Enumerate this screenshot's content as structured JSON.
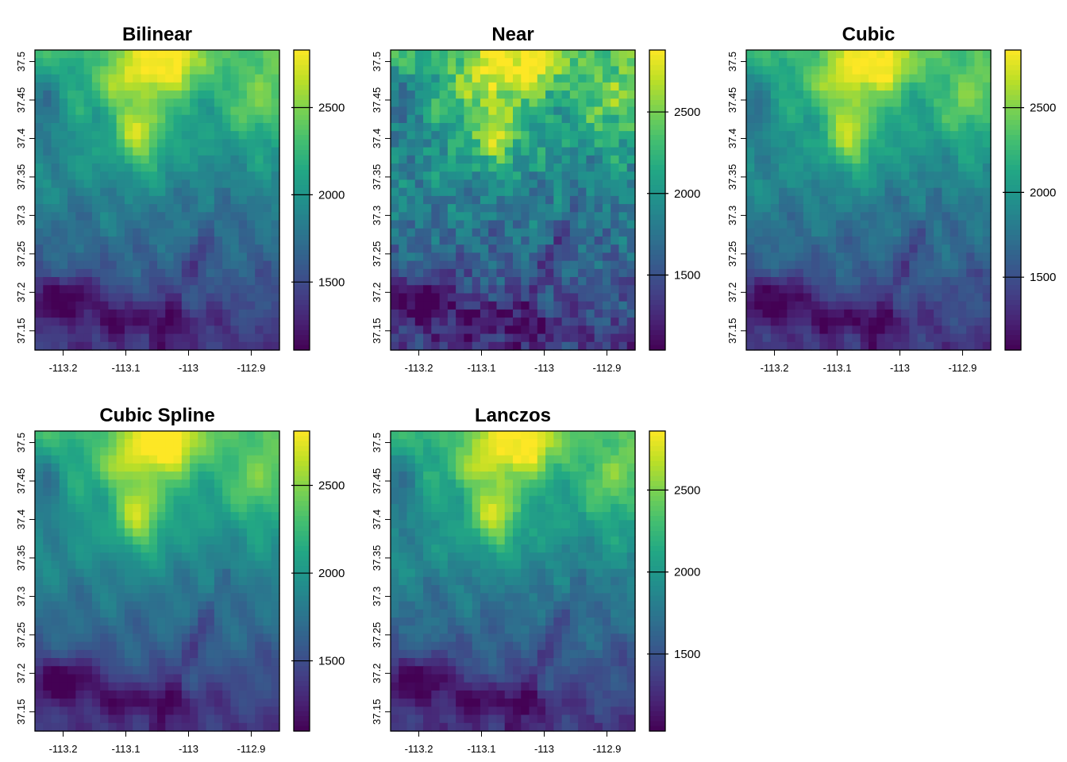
{
  "chart_data": [
    {
      "type": "heatmap",
      "title": "Bilinear",
      "x_ticks": [
        -113.2,
        -113.1,
        -113,
        -112.9
      ],
      "x_tick_labels": [
        "-113.2",
        "-113.1",
        "-113",
        "-112.9"
      ],
      "y_ticks": [
        37.15,
        37.2,
        37.25,
        37.3,
        37.35,
        37.4,
        37.45,
        37.5
      ],
      "y_tick_labels": [
        "37.15",
        "37.2",
        "37.25",
        "37.3",
        "37.35",
        "37.4",
        "37.45",
        "37.5"
      ],
      "xlim": [
        -113.245,
        -112.855
      ],
      "ylim": [
        37.125,
        37.515
      ],
      "colorbar": {
        "ticks": [
          1500,
          2000,
          2500
        ],
        "tick_labels": [
          "1500",
          "2000",
          "2500"
        ],
        "range": [
          1110,
          2830
        ]
      },
      "colormap": "viridis",
      "grid_resolution": "coarse"
    },
    {
      "type": "heatmap",
      "title": "Near",
      "x_ticks": [
        -113.2,
        -113.1,
        -113,
        -112.9
      ],
      "x_tick_labels": [
        "-113.2",
        "-113.1",
        "-113",
        "-112.9"
      ],
      "y_ticks": [
        37.15,
        37.2,
        37.25,
        37.3,
        37.35,
        37.4,
        37.45,
        37.5
      ],
      "y_tick_labels": [
        "37.15",
        "37.2",
        "37.25",
        "37.3",
        "37.35",
        "37.4",
        "37.45",
        "37.5"
      ],
      "xlim": [
        -113.245,
        -112.855
      ],
      "ylim": [
        37.125,
        37.515
      ],
      "colorbar": {
        "ticks": [
          1500,
          2000,
          2500
        ],
        "tick_labels": [
          "1500",
          "2000",
          "2500"
        ],
        "range": [
          1040,
          2880
        ]
      },
      "colormap": "viridis",
      "grid_resolution": "blocky"
    },
    {
      "type": "heatmap",
      "title": "Cubic",
      "x_ticks": [
        -113.2,
        -113.1,
        -113,
        -112.9
      ],
      "x_tick_labels": [
        "-113.2",
        "-113.1",
        "-113",
        "-112.9"
      ],
      "y_ticks": [
        37.15,
        37.2,
        37.25,
        37.3,
        37.35,
        37.4,
        37.45,
        37.5
      ],
      "y_tick_labels": [
        "37.15",
        "37.2",
        "37.25",
        "37.3",
        "37.35",
        "37.4",
        "37.45",
        "37.5"
      ],
      "xlim": [
        -113.245,
        -112.855
      ],
      "ylim": [
        37.125,
        37.515
      ],
      "colorbar": {
        "ticks": [
          1500,
          2000,
          2500
        ],
        "tick_labels": [
          "1500",
          "2000",
          "2500"
        ],
        "range": [
          1070,
          2840
        ]
      },
      "colormap": "viridis",
      "grid_resolution": "coarse"
    },
    {
      "type": "heatmap",
      "title": "Cubic Spline",
      "x_ticks": [
        -113.2,
        -113.1,
        -113,
        -112.9
      ],
      "x_tick_labels": [
        "-113.2",
        "-113.1",
        "-113",
        "-112.9"
      ],
      "y_ticks": [
        37.15,
        37.2,
        37.25,
        37.3,
        37.35,
        37.4,
        37.45,
        37.5
      ],
      "y_tick_labels": [
        "37.15",
        "37.2",
        "37.25",
        "37.3",
        "37.35",
        "37.4",
        "37.45",
        "37.5"
      ],
      "xlim": [
        -113.245,
        -112.855
      ],
      "ylim": [
        37.125,
        37.515
      ],
      "colorbar": {
        "ticks": [
          1500,
          2000,
          2500
        ],
        "tick_labels": [
          "1500",
          "2000",
          "2500"
        ],
        "range": [
          1100,
          2810
        ]
      },
      "colormap": "viridis",
      "grid_resolution": "smooth"
    },
    {
      "type": "heatmap",
      "title": "Lanczos",
      "x_ticks": [
        -113.2,
        -113.1,
        -113,
        -112.9
      ],
      "x_tick_labels": [
        "-113.2",
        "-113.1",
        "-113",
        "-112.9"
      ],
      "y_ticks": [
        37.15,
        37.2,
        37.25,
        37.3,
        37.35,
        37.4,
        37.45,
        37.5
      ],
      "y_tick_labels": [
        "37.15",
        "37.2",
        "37.25",
        "37.3",
        "37.35",
        "37.4",
        "37.45",
        "37.5"
      ],
      "xlim": [
        -113.245,
        -112.855
      ],
      "ylim": [
        37.125,
        37.515
      ],
      "colorbar": {
        "ticks": [
          1500,
          2000,
          2500
        ],
        "tick_labels": [
          "1500",
          "2000",
          "2500"
        ],
        "range": [
          1030,
          2860
        ]
      },
      "colormap": "viridis",
      "grid_resolution": "coarse"
    }
  ]
}
